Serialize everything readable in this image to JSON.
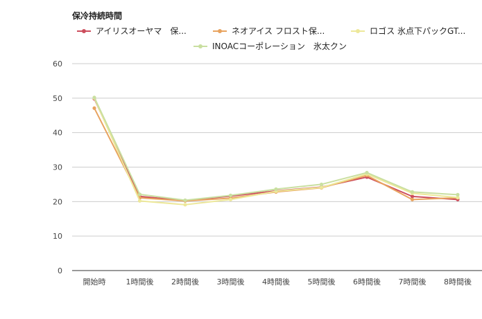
{
  "chart_data": {
    "type": "line",
    "title": "保冷持続時間",
    "categories": [
      "開始時",
      "1時間後",
      "2時間後",
      "3時間後",
      "4時間後",
      "5時間後",
      "6時間後",
      "7時間後",
      "8時間後"
    ],
    "ylim": [
      0,
      60
    ],
    "yticks": [
      0,
      10,
      20,
      30,
      40,
      50,
      60
    ],
    "grid": true,
    "legend_position": "top",
    "series": [
      {
        "name": "アイリスオーヤマ　保...",
        "color": "#cc4d5c",
        "values": [
          49.8,
          21.5,
          20.3,
          21.6,
          23.1,
          24.2,
          27.1,
          21.5,
          20.6
        ]
      },
      {
        "name": "ネオアイス フロスト保...",
        "color": "#e8a35f",
        "values": [
          47.1,
          21.1,
          20.2,
          21.0,
          22.8,
          24.0,
          27.6,
          20.6,
          21.1
        ]
      },
      {
        "name": "ロゴス 氷点下パックGT...",
        "color": "#ede89a",
        "values": [
          50.0,
          20.2,
          19.1,
          20.6,
          23.0,
          24.1,
          28.0,
          22.4,
          21.2
        ]
      },
      {
        "name": "INOACコーポレーション　氷太クン",
        "color": "#c9dfa0",
        "values": [
          50.2,
          22.1,
          20.4,
          21.8,
          23.6,
          25.0,
          28.4,
          22.8,
          22.0
        ]
      }
    ]
  }
}
